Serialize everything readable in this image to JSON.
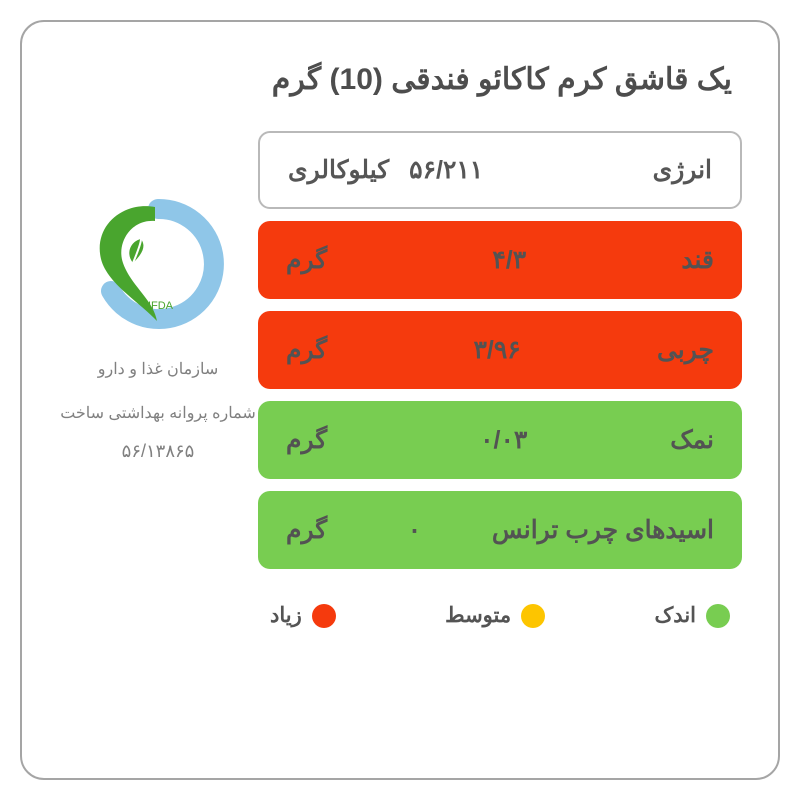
{
  "title": "یک قاشق کرم کاکائو فندقی (10) گرم",
  "colors": {
    "border": "#a5a5a5",
    "text_muted": "#808080",
    "text_title": "#4d4d4d",
    "text_row": "#565656",
    "low": "#78cd51",
    "medium": "#fdc500",
    "high": "#f53a0d",
    "logo_green": "#49a52e",
    "logo_blue": "#8fc6e8",
    "card_bg": "#ffffff"
  },
  "energy": {
    "label": "انرژی",
    "value": "۵۶/۲۱۱",
    "unit": "کیلوکالری"
  },
  "rows": [
    {
      "label": "قند",
      "value": "۴/۳",
      "unit": "گرم",
      "level": "high"
    },
    {
      "label": "چربی",
      "value": "۳/۹۶",
      "unit": "گرم",
      "level": "high"
    },
    {
      "label": "نمک",
      "value": "۰/۰۳",
      "unit": "گرم",
      "level": "low"
    },
    {
      "label": "اسیدهای چرب ترانس",
      "value": "۰",
      "unit": "گرم",
      "level": "low"
    }
  ],
  "legend": {
    "low": "اندک",
    "medium": "متوسط",
    "high": "زیاد"
  },
  "sidebar": {
    "logo_caption": "IFDA",
    "org": "سازمان غذا و دارو",
    "permit_label": "شماره پروانه بهداشتی ساخت",
    "permit_num": "۵۶/۱۳۸۶۵"
  },
  "type": "nutrition-traffic-light-label",
  "fontsize": {
    "title": 30,
    "row": 25,
    "legend": 21,
    "sidebar": 16
  }
}
